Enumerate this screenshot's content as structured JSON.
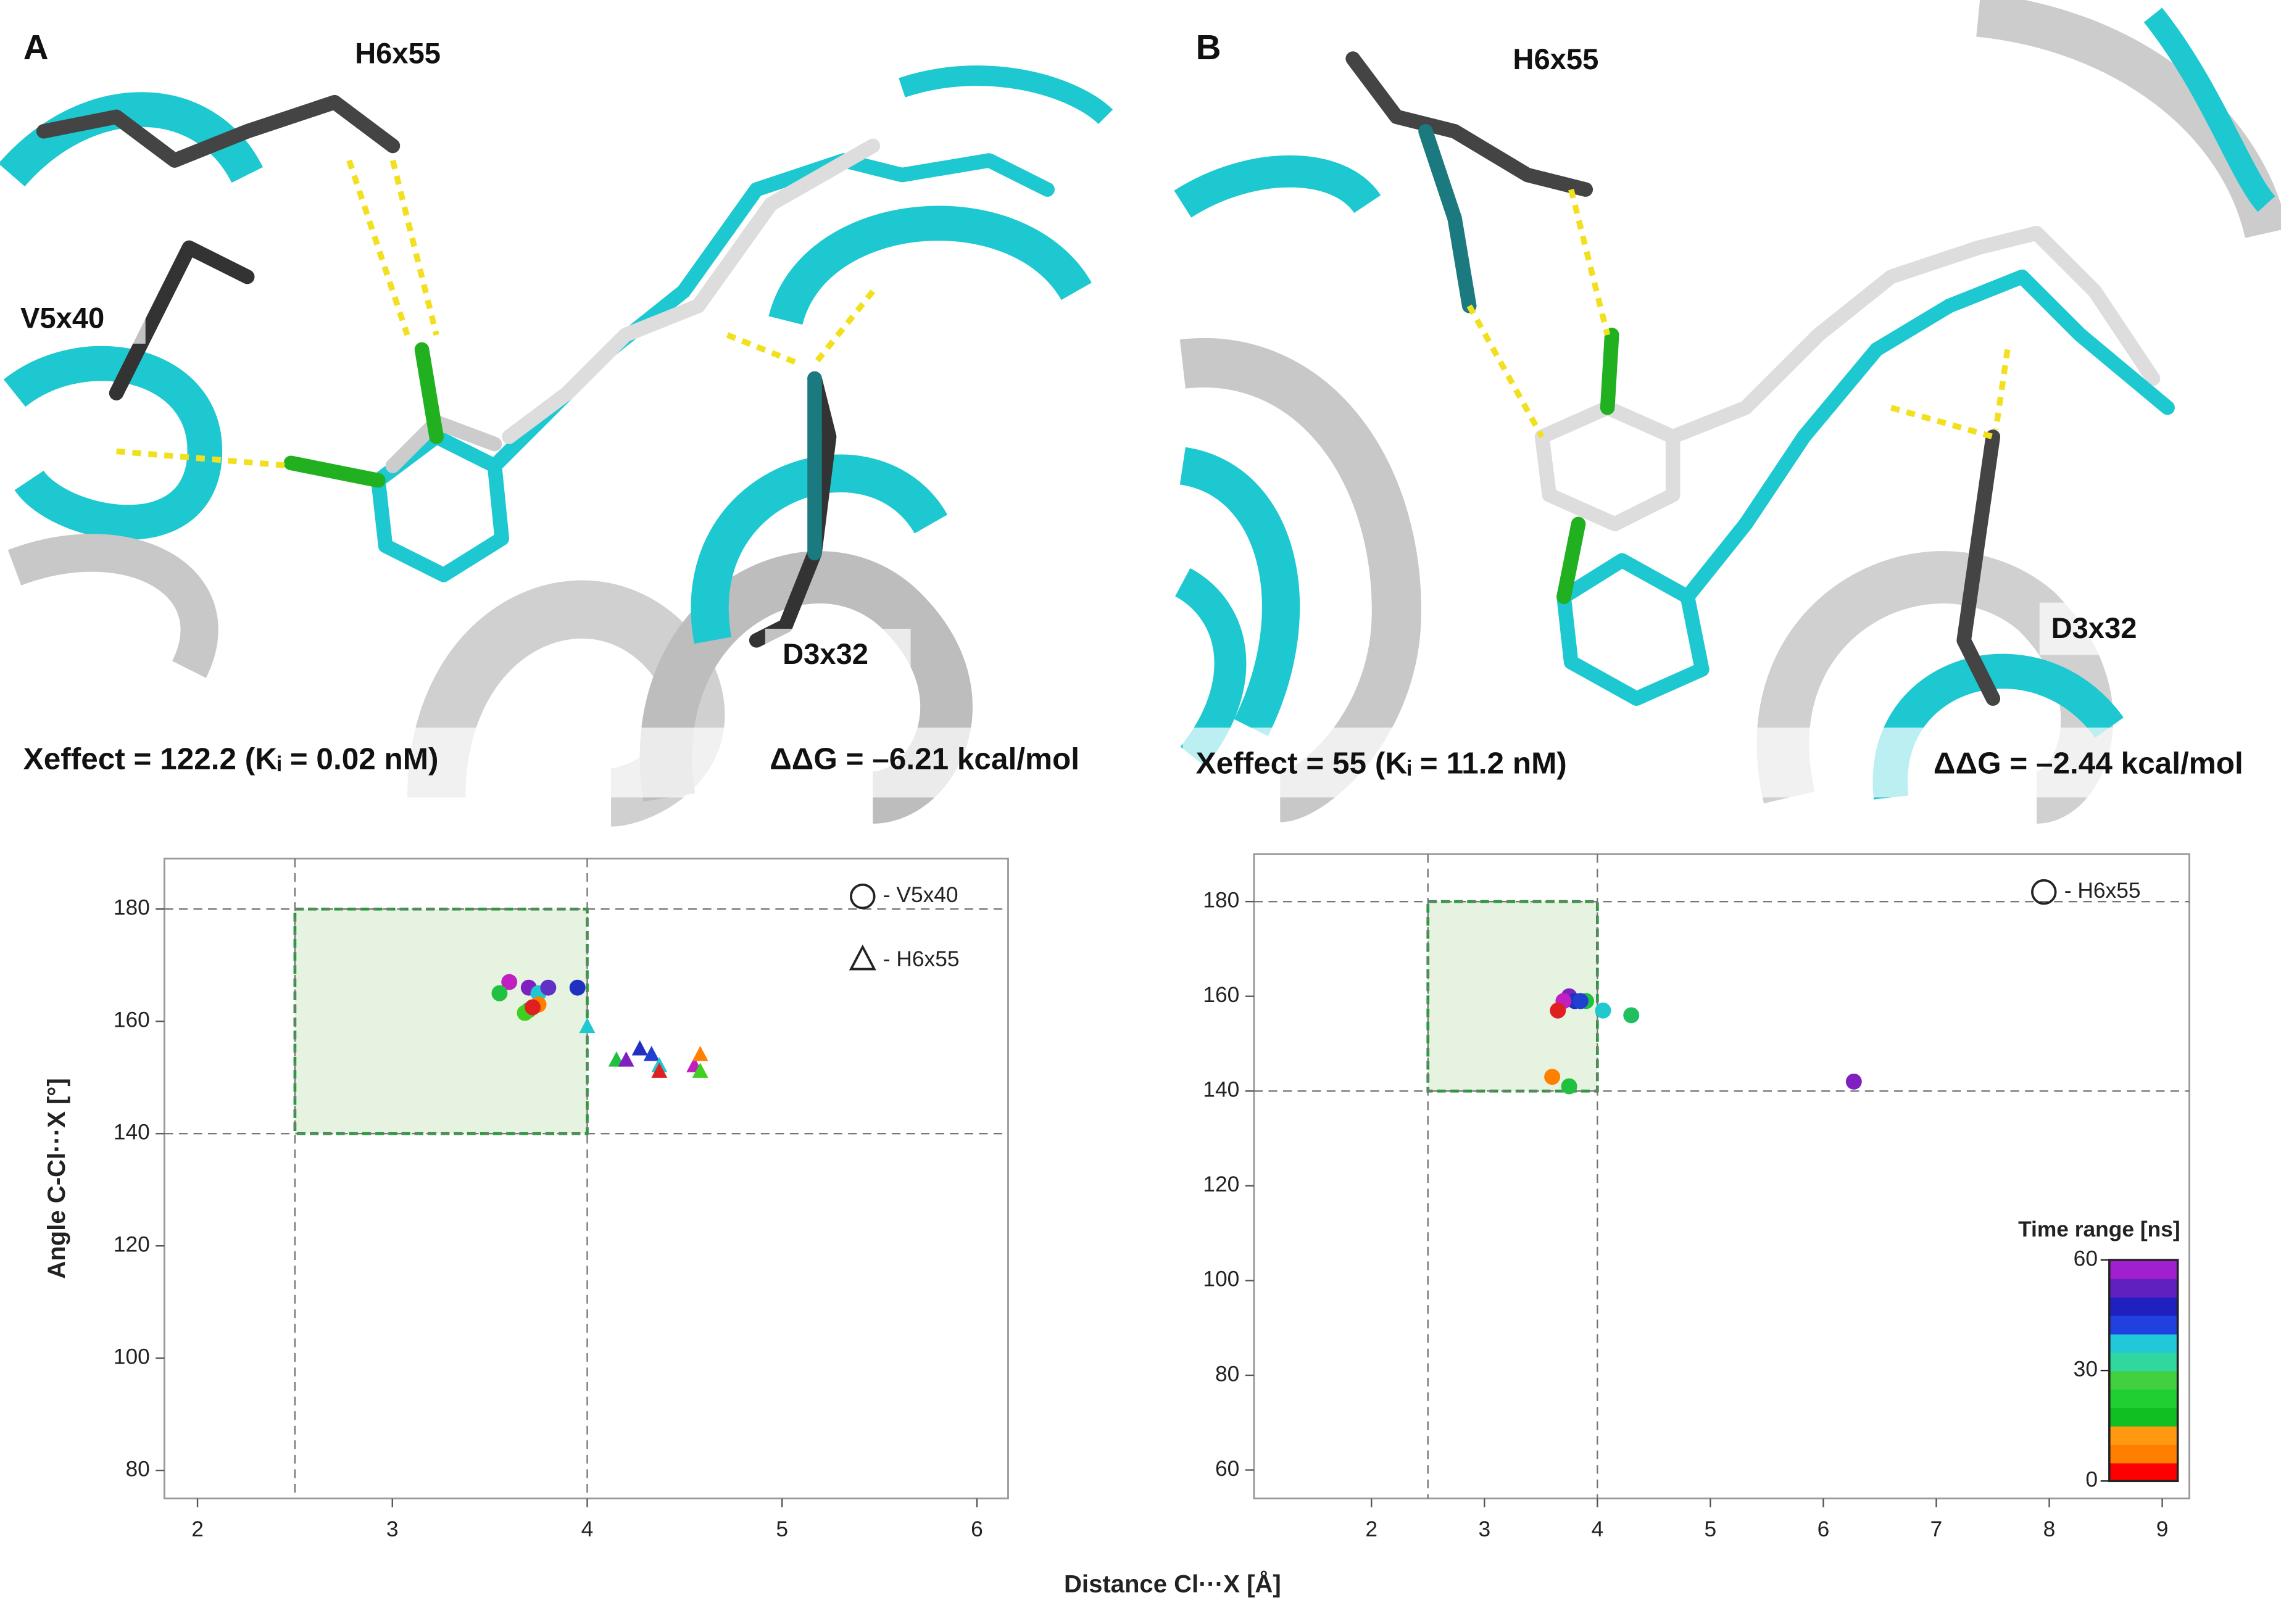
{
  "panels": [
    {
      "label": "A",
      "residues": [
        "H6x55",
        "V5x40",
        "D3x32"
      ],
      "xeffect": "Xeffect = 122.2 (Kᵢ = 0.02 nM)",
      "ddg": "ΔΔG = –6.21 kcal/mol"
    },
    {
      "label": "B",
      "residues": [
        "H6x55",
        "D3x32"
      ],
      "xeffect": "Xeffect = 55 (Kᵢ = 11.2 nM)",
      "ddg": "ΔΔG = –2.44 kcal/mol"
    }
  ],
  "chart_data": [
    {
      "type": "scatter",
      "x_label": "Distance Cl···X [Å]",
      "y_label": "Angle C-Cl···X [°]",
      "xlim": [
        1.83,
        6.16
      ],
      "ylim": [
        75,
        189
      ],
      "xticks": [
        2,
        3,
        4,
        5,
        6
      ],
      "yticks": [
        80,
        100,
        120,
        140,
        160,
        180
      ],
      "grid_x": [
        2.5,
        4
      ],
      "grid_y": [
        140,
        180
      ],
      "region": {
        "x": [
          2.5,
          4
        ],
        "y": [
          140,
          180
        ]
      },
      "series": [
        {
          "name": "- V5x40",
          "marker": "circle",
          "x": [
            3.6,
            3.55,
            3.7,
            3.75,
            3.8,
            3.95,
            3.7,
            3.68,
            3.75,
            3.72
          ],
          "values": [
            167,
            165,
            166,
            165,
            166,
            166,
            162,
            161.5,
            163,
            162.5
          ],
          "colors": [
            "#c020c0",
            "#20c040",
            "#8020c0",
            "#20c8d0",
            "#6030c8",
            "#2030c0",
            "#20c040",
            "#40d020",
            "#ff8000",
            "#e02020"
          ]
        },
        {
          "name": "- H6x55",
          "marker": "triangle",
          "x": [
            4.0,
            4.15,
            4.2,
            4.27,
            4.33,
            4.37,
            4.37,
            4.55,
            4.58,
            4.58
          ],
          "values": [
            159,
            153,
            153,
            155,
            154,
            152,
            151,
            152,
            154,
            151
          ],
          "colors": [
            "#20c8d0",
            "#20c040",
            "#8020c0",
            "#2030c0",
            "#2040d0",
            "#20c8d0",
            "#e02020",
            "#c020c0",
            "#ff8000",
            "#40d020"
          ]
        }
      ]
    },
    {
      "type": "scatter",
      "xlim": [
        0.96,
        9.24
      ],
      "ylim": [
        54,
        190
      ],
      "xticks": [
        2,
        3,
        4,
        5,
        6,
        7,
        8,
        9
      ],
      "yticks": [
        60,
        80,
        100,
        120,
        140,
        160,
        180
      ],
      "grid_x": [
        2.5,
        4
      ],
      "grid_y": [
        140,
        180
      ],
      "region": {
        "x": [
          2.5,
          4
        ],
        "y": [
          140,
          180
        ]
      },
      "series": [
        {
          "name": "- H6x55",
          "marker": "circle",
          "x": [
            3.75,
            3.8,
            3.7,
            3.9,
            3.85,
            3.65,
            4.05,
            4.3,
            3.6,
            3.75,
            6.27
          ],
          "values": [
            160,
            159,
            159,
            159,
            159,
            157,
            157,
            156,
            143,
            141,
            142
          ],
          "colors": [
            "#8020c0",
            "#2030c0",
            "#c020c0",
            "#20c040",
            "#2040d0",
            "#e02020",
            "#20c8d0",
            "#20c060",
            "#ff8000",
            "#20c040",
            "#8020c0"
          ]
        }
      ],
      "colorbar": {
        "title": "Time range [ns]",
        "lim": [
          0,
          60
        ],
        "ticks": [
          0,
          30,
          60
        ],
        "colors": [
          "#ff0000",
          "#ff8000",
          "#ff9a10",
          "#10c020",
          "#20d030",
          "#40d040",
          "#30d8a0",
          "#20c8d8",
          "#2040e0",
          "#2020c0",
          "#6020c0",
          "#a020d0"
        ]
      }
    }
  ]
}
